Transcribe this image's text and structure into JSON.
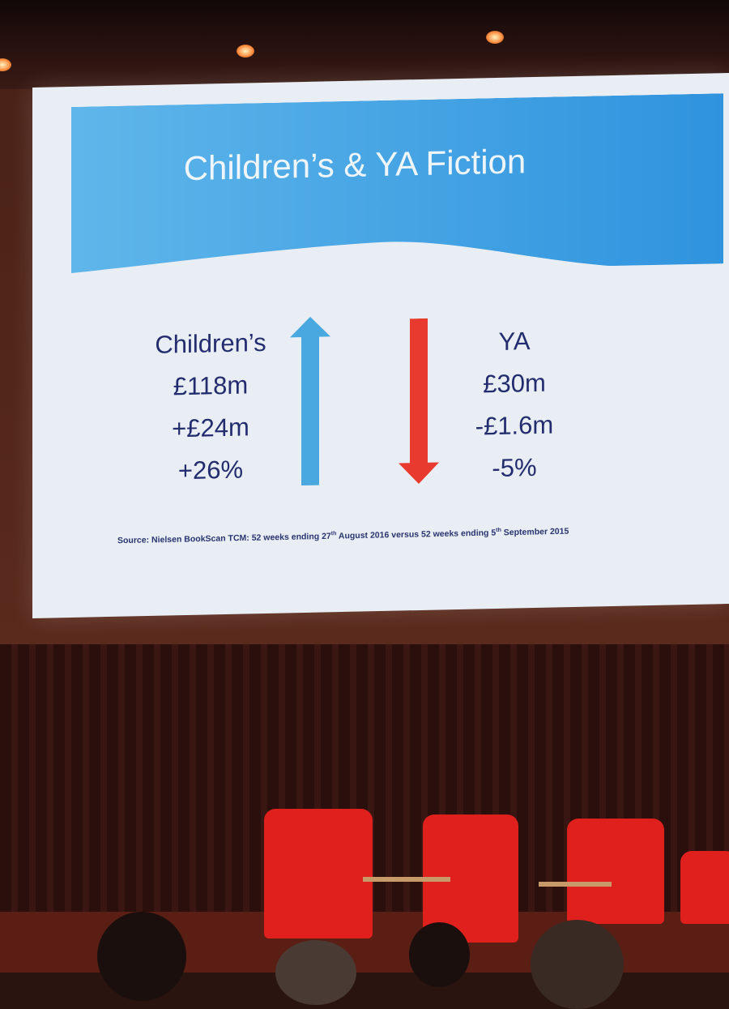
{
  "slide": {
    "title": "Children’s & YA Fiction",
    "left": {
      "label": "Children’s",
      "value": "£118m",
      "change": "+£24m",
      "percent": "+26%",
      "arrow": "up-arrow-icon",
      "arrow_color": "#4aa8e0"
    },
    "right": {
      "label": "YA",
      "value": "£30m",
      "change": "-£1.6m",
      "percent": "-5%",
      "arrow": "down-arrow-icon",
      "arrow_color": "#e83a2e"
    },
    "source": {
      "prefix": "Source: Nielsen BookScan TCM: 52 weeks ending 27",
      "sup1": "th",
      "mid": " August 2016 versus 52 weeks ending 5",
      "sup2": "th",
      "suffix": " September 2015"
    }
  },
  "colors": {
    "banner": "#2f93de",
    "text": "#232c6e",
    "chairs": "#e0201c"
  }
}
